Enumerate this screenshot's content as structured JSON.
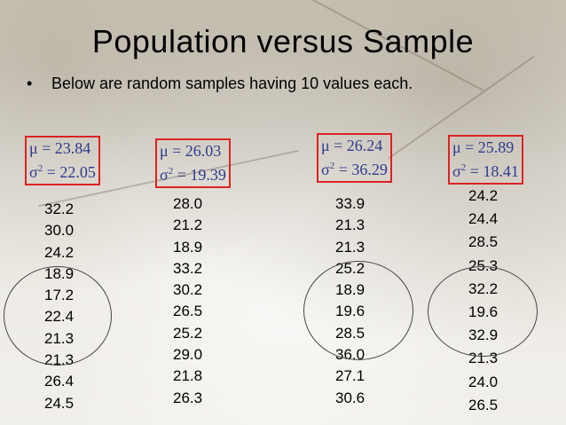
{
  "title": "Population versus Sample",
  "bullet": {
    "marker": "•",
    "text": "Below are random samples having 10 values each."
  },
  "samples": [
    {
      "mean": "μ = 23.84",
      "variance": "σ2 = 22.05",
      "values": [
        "32.2",
        "30.0",
        "24.2",
        "18.9",
        "17.2",
        "22.4",
        "21.3",
        "21.3",
        "26.4",
        "24.5"
      ]
    },
    {
      "mean": "μ = 26.03",
      "variance": "σ2 = 19.39",
      "values": [
        "28.0",
        "21.2",
        "18.9",
        "33.2",
        "30.2",
        "26.5",
        "25.2",
        "29.0",
        "21.8",
        "26.3"
      ]
    },
    {
      "mean": "μ = 26.24",
      "variance": "σ2 = 36.29",
      "values": [
        "33.9",
        "21.3",
        "21.3",
        "25.2",
        "18.9",
        "19.6",
        "28.5",
        "36.0",
        "27.1",
        "30.6"
      ]
    },
    {
      "mean": "μ = 25.89",
      "variance": "σ2 = 18.41",
      "values": [
        "24.2",
        "24.4",
        "28.5",
        "25.3",
        "32.2",
        "19.6",
        "32.9",
        "21.3",
        "24.0",
        "26.5"
      ]
    }
  ],
  "colors": {
    "stat_text": "#2e3b8e",
    "box_border": "#dd2222"
  }
}
